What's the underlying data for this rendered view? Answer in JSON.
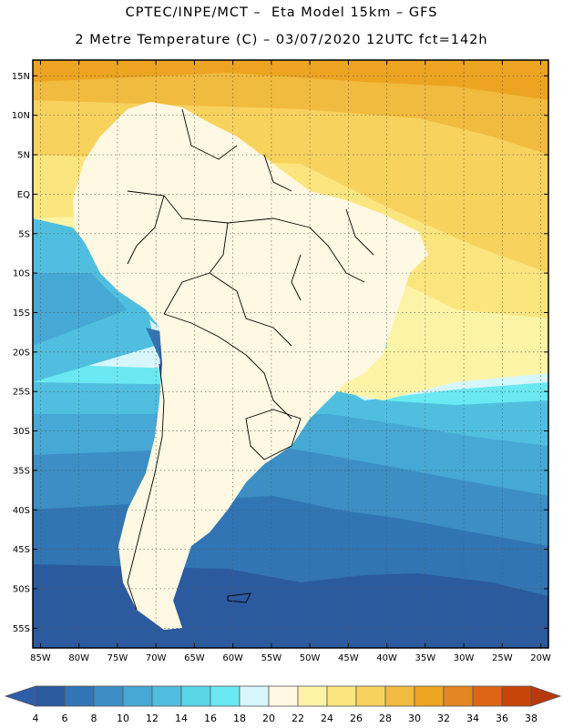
{
  "header": {
    "line1": "CPTEC/INPE/MCT –  Eta Model 15km – GFS",
    "line2": "2 Metre Temperature (C) – 03/07/2020 12UTC fct=142h"
  },
  "map": {
    "lon_range": [
      -86,
      -19
    ],
    "lat_range": [
      -57.5,
      17
    ],
    "lat_labels": [
      "15N",
      "10N",
      "5N",
      "EQ",
      "5S",
      "10S",
      "15S",
      "20S",
      "25S",
      "30S",
      "35S",
      "40S",
      "45S",
      "50S",
      "55S"
    ],
    "lat_values": [
      15,
      10,
      5,
      0,
      -5,
      -10,
      -15,
      -20,
      -25,
      -30,
      -35,
      -40,
      -45,
      -50,
      -55
    ],
    "lon_labels": [
      "85W",
      "80W",
      "75W",
      "70W",
      "65W",
      "60W",
      "55W",
      "50W",
      "45W",
      "40W",
      "35W",
      "30W",
      "25W",
      "20W"
    ],
    "lon_values": [
      -85,
      -80,
      -75,
      -70,
      -65,
      -60,
      -55,
      -50,
      -45,
      -40,
      -35,
      -30,
      -25,
      -20
    ],
    "gridlines": true
  },
  "colorbar": {
    "labels": [
      "4",
      "6",
      "8",
      "10",
      "12",
      "14",
      "16",
      "18",
      "20",
      "22",
      "24",
      "26",
      "28",
      "30",
      "32",
      "34",
      "36",
      "38"
    ],
    "colors": [
      "#2c5a9f",
      "#3275b4",
      "#3c8ec4",
      "#46a8d4",
      "#50bfdf",
      "#5ad6e9",
      "#6ae9f2",
      "#d5f6fb",
      "#fff8e2",
      "#fdf3a6",
      "#fbe57e",
      "#f7d35e",
      "#f1bb3f",
      "#eca421",
      "#e48621",
      "#dc6614",
      "#c84508"
    ],
    "min_color": "#2f5ea8",
    "max_color": "#b8390c"
  }
}
